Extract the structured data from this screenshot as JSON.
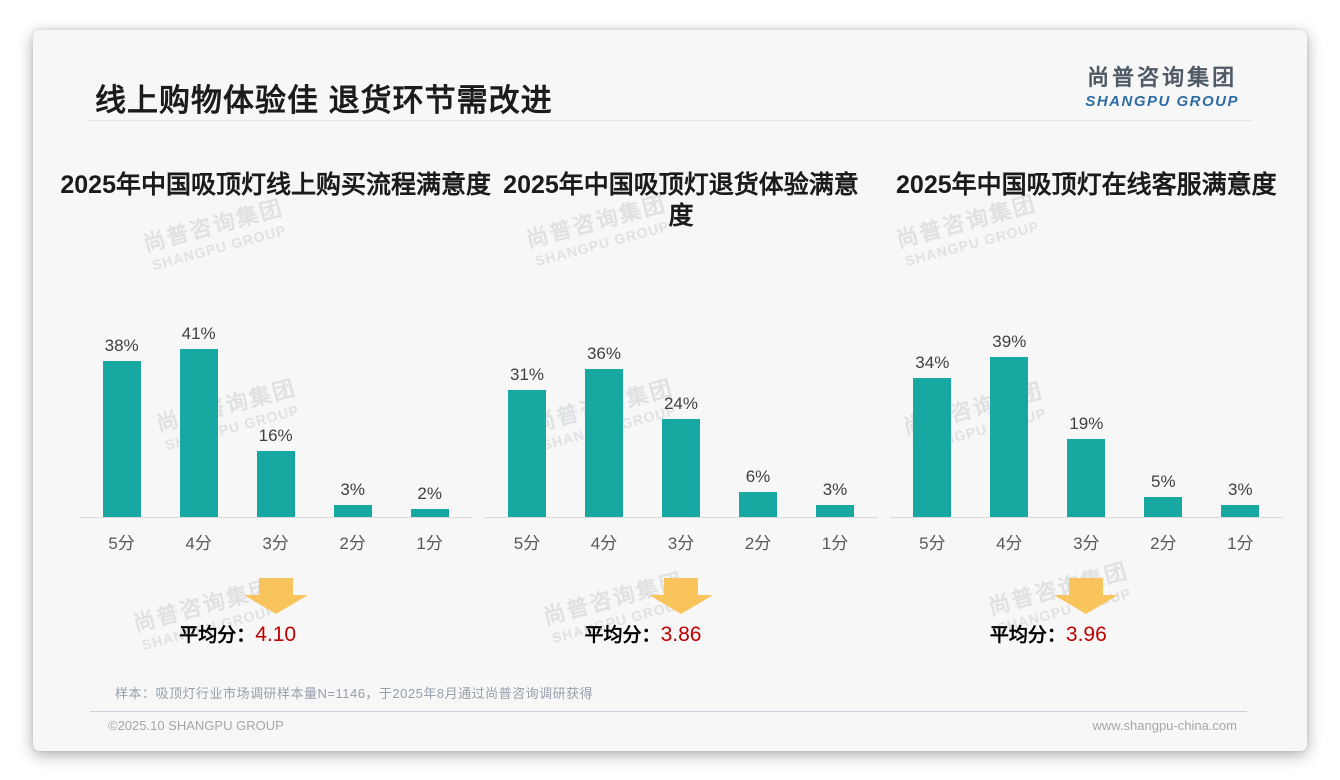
{
  "page": {
    "title": "线上购物体验佳 退货环节需改进",
    "logo": {
      "zh": "尚普咨询集团",
      "en": "SHANGPU GROUP"
    },
    "watermark_text": {
      "zh": "尚普咨询集团",
      "en": "SHANGPU GROUP"
    },
    "footnote": "样本：吸顶灯行业市场调研样本量N=1146，于2025年8月通过尚普咨询调研获得",
    "copyright": "©2025.10 SHANGPU GROUP",
    "website": "www.shangpu-china.com",
    "colors": {
      "bar_teal": "#16a8a1",
      "average_red": "#c00000",
      "arrow_yellow": "#fac45c",
      "logo_blue": "#2e6da4"
    }
  },
  "chart_data": [
    {
      "type": "bar",
      "title": "2025年中国吸顶灯线上购买流程满意度",
      "categories": [
        "5分",
        "4分",
        "3分",
        "2分",
        "1分"
      ],
      "values": [
        38,
        41,
        16,
        3,
        2
      ],
      "value_labels": [
        "38%",
        "41%",
        "16%",
        "3%",
        "2%"
      ],
      "unit": "%",
      "ylim": [
        0,
        45
      ],
      "grid": false,
      "legend": "none",
      "average_label": "平均分：",
      "average_value": "4.10"
    },
    {
      "type": "bar",
      "title": "2025年中国吸顶灯退货体验满意度",
      "categories": [
        "5分",
        "4分",
        "3分",
        "2分",
        "1分"
      ],
      "values": [
        31,
        36,
        24,
        6,
        3
      ],
      "value_labels": [
        "31%",
        "36%",
        "24%",
        "6%",
        "3%"
      ],
      "unit": "%",
      "ylim": [
        0,
        45
      ],
      "grid": false,
      "legend": "none",
      "average_label": "平均分：",
      "average_value": "3.86"
    },
    {
      "type": "bar",
      "title": "2025年中国吸顶灯在线客服满意度",
      "categories": [
        "5分",
        "4分",
        "3分",
        "2分",
        "1分"
      ],
      "values": [
        34,
        39,
        19,
        5,
        3
      ],
      "value_labels": [
        "34%",
        "39%",
        "19%",
        "5%",
        "3%"
      ],
      "unit": "%",
      "ylim": [
        0,
        45
      ],
      "grid": false,
      "legend": "none",
      "average_label": "平均分：",
      "average_value": "3.96"
    }
  ]
}
